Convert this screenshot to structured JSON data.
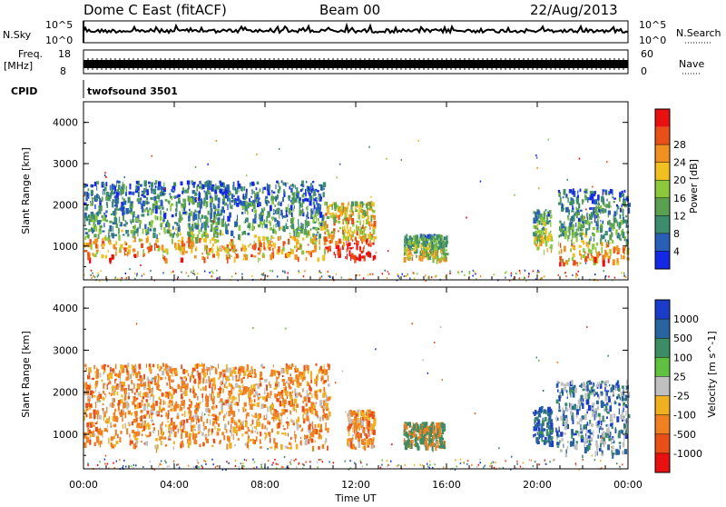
{
  "header": {
    "station": "Dome C East (fitACF)",
    "beam": "Beam 00",
    "date": "22/Aug/2013"
  },
  "nsky_panel": {
    "left_label": "N.Sky",
    "ytick_top": "10^5",
    "ytick_bottom": "10^0",
    "right_label": "N.Search",
    "right_tick_top": "10^5",
    "right_tick_bottom": "10^0"
  },
  "freq_panel": {
    "left_label_line1": "Freq.",
    "left_label_line2": "[MHz]",
    "ytick_top": "18",
    "ytick_bottom": "8",
    "right_label": "Nave",
    "right_tick_top": "60",
    "right_tick_bottom": "0"
  },
  "cpid_panel": {
    "label": "CPID",
    "program": "twofsound 3501"
  },
  "chart_data": [
    {
      "type": "heatmap",
      "parameter": "Power",
      "ylabel": "Slant Range [km]",
      "xlabel": "",
      "ylim": [
        180,
        4500
      ],
      "yticks": [
        "1000",
        "2000",
        "3000",
        "4000"
      ],
      "colorbar": {
        "label": "Power [dB]",
        "ticks": [
          "4",
          "8",
          "12",
          "16",
          "20",
          "24",
          "28"
        ],
        "colors": [
          "#1428e6",
          "#2a5fb8",
          "#3c8c6e",
          "#5aa050",
          "#8cc83c",
          "#f0c020",
          "#f09020",
          "#e85018",
          "#e81010"
        ]
      },
      "time_range_hours": [
        0,
        24
      ],
      "echo_regions": [
        {
          "t_start": 0.0,
          "t_end": 10.6,
          "range_min": 700,
          "range_max": 2600,
          "level": "mixed-strong"
        },
        {
          "t_start": 10.6,
          "t_end": 12.8,
          "range_min": 700,
          "range_max": 2100,
          "level": "strong"
        },
        {
          "t_start": 14.1,
          "t_end": 16.0,
          "range_min": 700,
          "range_max": 1300,
          "level": "moderate"
        },
        {
          "t_start": 19.8,
          "t_end": 20.6,
          "range_min": 900,
          "range_max": 1900,
          "level": "moderate"
        },
        {
          "t_start": 20.9,
          "t_end": 24.0,
          "range_min": 600,
          "range_max": 2400,
          "level": "mixed-strong"
        }
      ]
    },
    {
      "type": "heatmap",
      "parameter": "Velocity",
      "ylabel": "Slant Range [km]",
      "xlabel": "Time UT",
      "ylim": [
        180,
        4500
      ],
      "yticks": [
        "1000",
        "2000",
        "3000",
        "4000"
      ],
      "xticks": [
        "00:00",
        "04:00",
        "08:00",
        "12:00",
        "16:00",
        "20:00",
        "00:00"
      ],
      "colorbar": {
        "label": "Velocity [m s^-1]",
        "ticks": [
          "1000",
          "500",
          "100",
          "25",
          "-25",
          "-100",
          "-500",
          "-1000"
        ],
        "colors": [
          "#1a3cc8",
          "#2a64a0",
          "#3c8c64",
          "#60c040",
          "#c0c0c0",
          "#f0b020",
          "#f08020",
          "#e85018",
          "#e81010"
        ]
      },
      "time_range_hours": [
        0,
        24
      ],
      "echo_regions": [
        {
          "t_start": 0.0,
          "t_end": 10.8,
          "range_min": 700,
          "range_max": 2700,
          "level": "negative"
        },
        {
          "t_start": 11.6,
          "t_end": 12.8,
          "range_min": 700,
          "range_max": 1600,
          "level": "negative"
        },
        {
          "t_start": 14.1,
          "t_end": 15.9,
          "range_min": 700,
          "range_max": 1300,
          "level": "mixed"
        },
        {
          "t_start": 19.8,
          "t_end": 20.6,
          "range_min": 800,
          "range_max": 1700,
          "level": "positive"
        },
        {
          "t_start": 20.8,
          "t_end": 24.0,
          "range_min": 500,
          "range_max": 2300,
          "level": "positive-mixed"
        }
      ]
    }
  ]
}
